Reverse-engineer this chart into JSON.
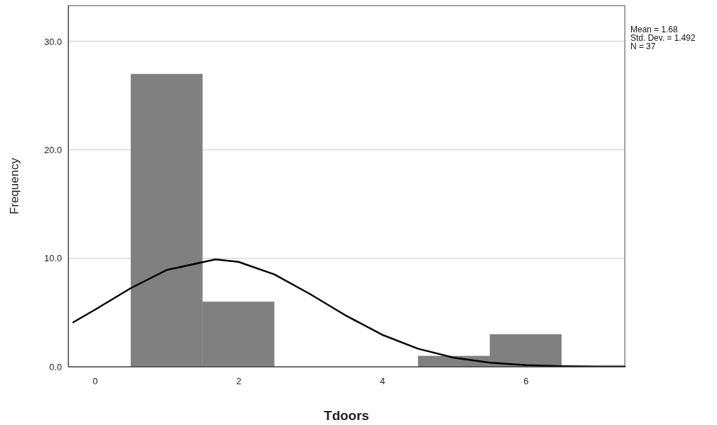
{
  "chart_data": {
    "type": "histogram",
    "xlabel": "Tdoors",
    "ylabel": "Frequency",
    "bins": [
      0.5,
      1.5,
      2.5,
      3.5,
      4.5,
      5.5,
      6.5
    ],
    "values": [
      27,
      6,
      0,
      0,
      1,
      3
    ],
    "color": "#808080",
    "series": [
      {
        "type": "line",
        "color": "#000000",
        "x": [
          -0.3,
          0,
          0.5,
          1,
          1.68,
          2,
          2.5,
          3,
          3.5,
          4,
          4.5,
          5,
          5.5,
          6,
          6.5,
          7,
          7.38
        ],
        "values": [
          4.1,
          5.25,
          7.24,
          8.92,
          9.89,
          9.67,
          8.51,
          6.69,
          4.7,
          2.95,
          1.66,
          0.83,
          0.37,
          0.15,
          0.05,
          0.02,
          0.01
        ]
      }
    ],
    "xlim": [
      -0.37,
      7.38
    ],
    "ylim": [
      0,
      33.3
    ],
    "xticks": [
      0,
      2,
      4,
      6
    ],
    "yticks": [
      {
        "value": 0,
        "label": "0.0"
      },
      {
        "value": 10,
        "label": "10.0"
      },
      {
        "value": 20,
        "label": "20.0"
      },
      {
        "value": 30,
        "label": "30.0"
      }
    ],
    "grid": "y",
    "annotations": [
      "Mean = 1.68",
      "Std. Dev. = 1.492",
      "N = 37"
    ]
  }
}
